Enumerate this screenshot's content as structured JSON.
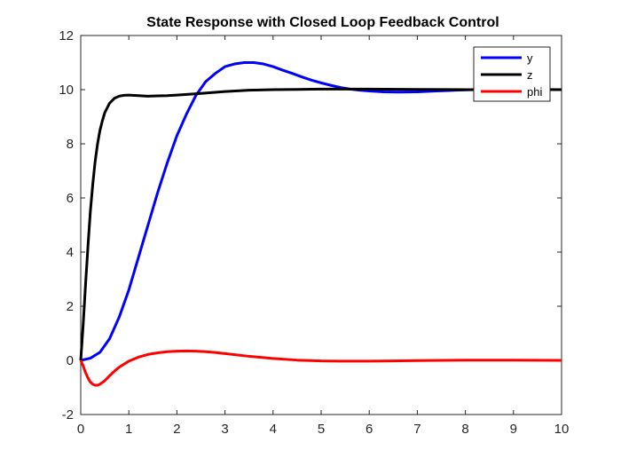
{
  "chart_data": {
    "type": "line",
    "title": "State Response with Closed Loop Feedback Control",
    "xlabel": "",
    "ylabel": "",
    "xlim": [
      0,
      10
    ],
    "ylim": [
      -2,
      12
    ],
    "x_ticks": [
      0,
      1,
      2,
      3,
      4,
      5,
      6,
      7,
      8,
      9,
      10
    ],
    "y_ticks": [
      -2,
      0,
      2,
      4,
      6,
      8,
      10,
      12
    ],
    "grid": false,
    "legend_position": "top-right",
    "series": [
      {
        "name": "y",
        "color": "#0000ff",
        "x": [
          0,
          0.2,
          0.4,
          0.6,
          0.8,
          1.0,
          1.2,
          1.4,
          1.6,
          1.8,
          2.0,
          2.2,
          2.4,
          2.6,
          2.8,
          3.0,
          3.2,
          3.4,
          3.6,
          3.8,
          4.0,
          4.2,
          4.4,
          4.6,
          4.8,
          5.0,
          5.2,
          5.4,
          5.6,
          5.8,
          6.0,
          6.3,
          6.6,
          7.0,
          7.4,
          7.8,
          8.2,
          8.6,
          9.0,
          9.5,
          10.0
        ],
        "y": [
          0,
          0.08,
          0.3,
          0.8,
          1.6,
          2.6,
          3.8,
          5.0,
          6.2,
          7.3,
          8.3,
          9.1,
          9.8,
          10.3,
          10.6,
          10.85,
          10.95,
          11.0,
          11.0,
          10.95,
          10.85,
          10.72,
          10.6,
          10.47,
          10.35,
          10.25,
          10.16,
          10.08,
          10.02,
          9.98,
          9.95,
          9.92,
          9.91,
          9.92,
          9.95,
          9.98,
          10.0,
          10.01,
          10.02,
          10.01,
          10.0
        ]
      },
      {
        "name": "z",
        "color": "#000000",
        "x": [
          0,
          0.05,
          0.1,
          0.15,
          0.2,
          0.25,
          0.3,
          0.35,
          0.4,
          0.45,
          0.5,
          0.6,
          0.7,
          0.8,
          0.9,
          1.0,
          1.2,
          1.4,
          1.6,
          1.8,
          2.0,
          2.5,
          3.0,
          3.5,
          4.0,
          4.5,
          5.0,
          6.0,
          7.0,
          8.0,
          9.0,
          10.0
        ],
        "y": [
          0,
          1.3,
          2.8,
          4.2,
          5.5,
          6.5,
          7.35,
          8.0,
          8.5,
          8.85,
          9.15,
          9.5,
          9.68,
          9.76,
          9.79,
          9.8,
          9.78,
          9.76,
          9.77,
          9.78,
          9.8,
          9.86,
          9.93,
          9.98,
          10.0,
          10.01,
          10.02,
          10.02,
          10.01,
          10.0,
          10.0,
          10.0
        ]
      },
      {
        "name": "phi",
        "color": "#ff0000",
        "x": [
          0,
          0.05,
          0.1,
          0.15,
          0.2,
          0.25,
          0.3,
          0.35,
          0.4,
          0.5,
          0.6,
          0.7,
          0.8,
          1.0,
          1.2,
          1.4,
          1.6,
          1.8,
          2.0,
          2.2,
          2.4,
          2.6,
          2.8,
          3.0,
          3.5,
          4.0,
          4.5,
          5.0,
          5.5,
          6.0,
          6.5,
          7.0,
          8.0,
          9.0,
          10.0
        ],
        "y": [
          0,
          -0.2,
          -0.45,
          -0.65,
          -0.8,
          -0.88,
          -0.92,
          -0.92,
          -0.88,
          -0.75,
          -0.57,
          -0.4,
          -0.25,
          -0.03,
          0.12,
          0.22,
          0.28,
          0.32,
          0.34,
          0.35,
          0.34,
          0.32,
          0.29,
          0.25,
          0.15,
          0.07,
          0.01,
          -0.02,
          -0.03,
          -0.03,
          -0.02,
          -0.01,
          0.01,
          0.01,
          0.0
        ]
      }
    ]
  }
}
